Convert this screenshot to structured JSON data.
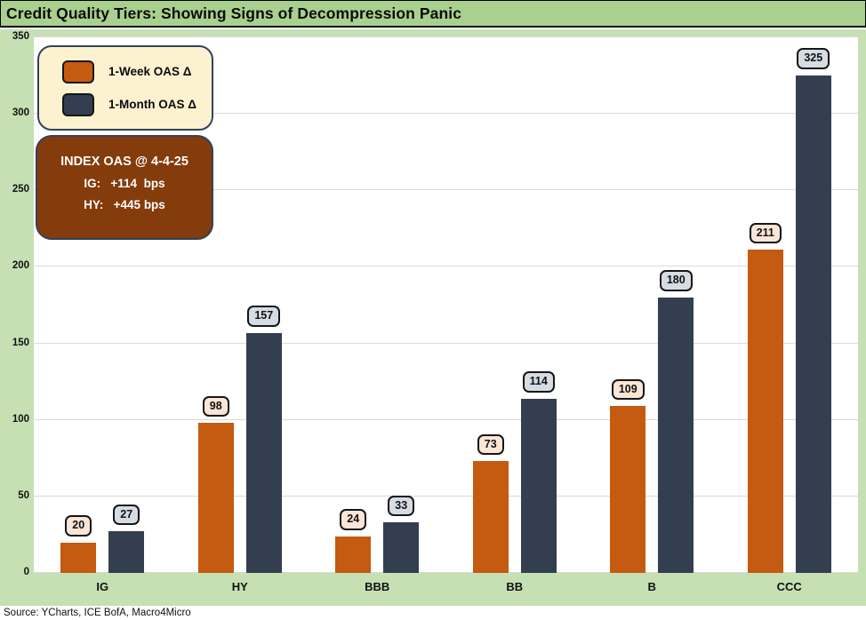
{
  "title": "Credit Quality Tiers: Showing Signs of Decompression Panic",
  "source": "Source: YCharts, ICE BofA, Macro4Micro",
  "legend": {
    "items": [
      {
        "label": "1-Week OAS Δ",
        "swatch_color": "#C55A11"
      },
      {
        "label": "1-Month OAS Δ",
        "swatch_color": "#333F50"
      }
    ]
  },
  "annotation": {
    "title": "INDEX OAS @ 4-4-25",
    "lines": [
      "IG:   +114  bps",
      "HY:   +445 bps"
    ],
    "bg_color": "#843C0C"
  },
  "colors": {
    "title_band_bg": "#A9D08E",
    "chart_bg": "#C6E0B4",
    "plot_bg": "#FFFFFF",
    "gridline": "#D9D9D9",
    "week_bar": "#C55A11",
    "month_bar": "#333F50",
    "week_chip_bg": "#FBE5D6",
    "month_chip_bg": "#D6DCE4",
    "legend_bg": "#FDF2D0",
    "box_border": "#33415C"
  },
  "chart_data": {
    "type": "bar",
    "categories": [
      "IG",
      "HY",
      "BBB",
      "BB",
      "B",
      "CCC"
    ],
    "series": [
      {
        "name": "1-Week OAS Δ",
        "values": [
          20,
          98,
          24,
          73,
          109,
          211
        ],
        "color": "#C55A11",
        "chip_bg": "#FBE5D6"
      },
      {
        "name": "1-Month OAS Δ",
        "values": [
          27,
          157,
          33,
          114,
          180,
          325
        ],
        "color": "#333F50",
        "chip_bg": "#D6DCE4"
      }
    ],
    "title": "Credit Quality Tiers: Showing Signs of Decompression Panic",
    "xlabel": "",
    "ylabel": "",
    "ylim": [
      0,
      350
    ],
    "yticks": [
      0,
      50,
      100,
      150,
      200,
      250,
      300,
      350
    ],
    "grid": true,
    "legend_position": "upper-left",
    "data_labels": true
  }
}
